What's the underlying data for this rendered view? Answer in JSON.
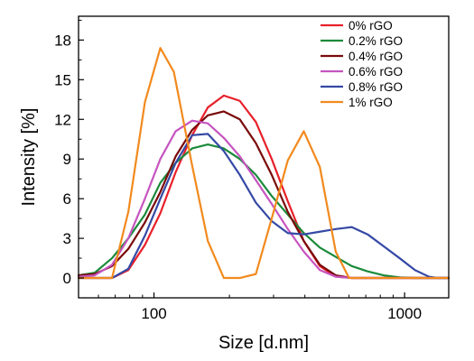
{
  "chart_data": {
    "type": "line",
    "title": "",
    "xlabel": "Size [d.nm]",
    "ylabel": "Intensity [%]",
    "x_scale": "log",
    "xlim": [
      50,
      1500
    ],
    "ylim": [
      -1.5,
      19.8
    ],
    "x_ticks": [
      100,
      1000
    ],
    "x_tick_labels": [
      "100",
      "1000"
    ],
    "y_ticks": [
      0,
      3,
      6,
      9,
      12,
      15,
      18
    ],
    "y_tick_labels": [
      "0",
      "3",
      "6",
      "9",
      "12",
      "15",
      "18"
    ],
    "grid": false,
    "legend_position": "top-right",
    "series": [
      {
        "name": "0% rGO",
        "color": "#e8202a",
        "points": [
          [
            50,
            0
          ],
          [
            68,
            0
          ],
          [
            79,
            0.6
          ],
          [
            92,
            2.5
          ],
          [
            106,
            4.9
          ],
          [
            122,
            8.0
          ],
          [
            142,
            10.8
          ],
          [
            164,
            12.9
          ],
          [
            190,
            13.8
          ],
          [
            220,
            13.4
          ],
          [
            255,
            11.8
          ],
          [
            295,
            9.0
          ],
          [
            342,
            5.8
          ],
          [
            396,
            2.8
          ],
          [
            459,
            0.9
          ],
          [
            531,
            0.1
          ],
          [
            615,
            0
          ],
          [
            1500,
            0
          ]
        ]
      },
      {
        "name": "0.2% rGO",
        "color": "#1a8a3a",
        "points": [
          [
            50,
            0.2
          ],
          [
            58,
            0.4
          ],
          [
            68,
            1.5
          ],
          [
            79,
            3.0
          ],
          [
            92,
            4.8
          ],
          [
            106,
            7.2
          ],
          [
            122,
            8.7
          ],
          [
            142,
            9.8
          ],
          [
            164,
            10.1
          ],
          [
            190,
            9.8
          ],
          [
            220,
            9.0
          ],
          [
            255,
            7.8
          ],
          [
            295,
            6.2
          ],
          [
            342,
            4.8
          ],
          [
            396,
            3.4
          ],
          [
            459,
            2.3
          ],
          [
            531,
            1.6
          ],
          [
            615,
            0.9
          ],
          [
            712,
            0.5
          ],
          [
            825,
            0.2
          ],
          [
            955,
            0.05
          ],
          [
            1100,
            0
          ],
          [
            1500,
            0
          ]
        ]
      },
      {
        "name": "0.4% rGO",
        "color": "#7a0a0a",
        "points": [
          [
            50,
            0.2
          ],
          [
            58,
            0.3
          ],
          [
            68,
            0.9
          ],
          [
            79,
            2.2
          ],
          [
            92,
            4.2
          ],
          [
            106,
            6.5
          ],
          [
            122,
            9.2
          ],
          [
            142,
            11.2
          ],
          [
            164,
            12.3
          ],
          [
            190,
            12.6
          ],
          [
            220,
            12.0
          ],
          [
            255,
            10.2
          ],
          [
            295,
            7.8
          ],
          [
            342,
            5.0
          ],
          [
            396,
            2.8
          ],
          [
            459,
            1.0
          ],
          [
            531,
            0.2
          ],
          [
            615,
            0
          ],
          [
            1500,
            0
          ]
        ]
      },
      {
        "name": "0.6% rGO",
        "color": "#c655c0",
        "points": [
          [
            50,
            0.1
          ],
          [
            58,
            0.2
          ],
          [
            68,
            1.0
          ],
          [
            79,
            3.0
          ],
          [
            92,
            6.0
          ],
          [
            106,
            9.0
          ],
          [
            122,
            11.1
          ],
          [
            142,
            11.9
          ],
          [
            164,
            11.7
          ],
          [
            190,
            10.6
          ],
          [
            220,
            9.2
          ],
          [
            255,
            7.4
          ],
          [
            295,
            5.6
          ],
          [
            342,
            3.7
          ],
          [
            396,
            2.0
          ],
          [
            459,
            0.6
          ],
          [
            531,
            0.1
          ],
          [
            615,
            0
          ],
          [
            1500,
            0
          ]
        ]
      },
      {
        "name": "0.8% rGO",
        "color": "#3549a5",
        "points": [
          [
            50,
            0
          ],
          [
            68,
            0
          ],
          [
            79,
            0.7
          ],
          [
            92,
            3.2
          ],
          [
            106,
            6.0
          ],
          [
            122,
            8.7
          ],
          [
            142,
            10.8
          ],
          [
            164,
            10.9
          ],
          [
            190,
            9.6
          ],
          [
            220,
            7.8
          ],
          [
            255,
            5.7
          ],
          [
            295,
            4.3
          ],
          [
            342,
            3.4
          ],
          [
            396,
            3.3
          ],
          [
            459,
            3.5
          ],
          [
            531,
            3.7
          ],
          [
            615,
            3.85
          ],
          [
            712,
            3.3
          ],
          [
            825,
            2.4
          ],
          [
            955,
            1.5
          ],
          [
            1100,
            0.6
          ],
          [
            1250,
            0.1
          ],
          [
            1350,
            0
          ],
          [
            1500,
            0
          ]
        ]
      },
      {
        "name": "1% rGO",
        "color": "#f28a1e",
        "points": [
          [
            50,
            0
          ],
          [
            68,
            0
          ],
          [
            79,
            5.0
          ],
          [
            92,
            13.3
          ],
          [
            106,
            17.4
          ],
          [
            120,
            15.6
          ],
          [
            142,
            8.5
          ],
          [
            164,
            2.8
          ],
          [
            190,
            0
          ],
          [
            220,
            0
          ],
          [
            255,
            0.3
          ],
          [
            295,
            4.5
          ],
          [
            342,
            8.9
          ],
          [
            396,
            11.1
          ],
          [
            459,
            8.4
          ],
          [
            531,
            2.0
          ],
          [
            600,
            0
          ],
          [
            1500,
            0
          ]
        ]
      }
    ]
  }
}
